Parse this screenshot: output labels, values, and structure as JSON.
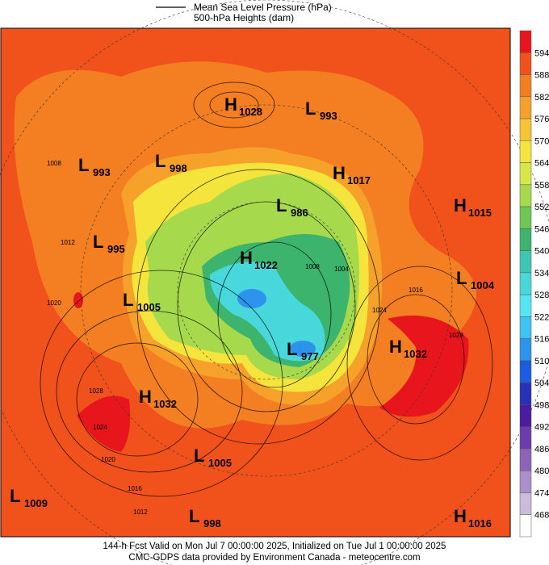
{
  "header": {
    "legend": [
      "Mean Sea Level Pressure (hPa)",
      "500-hPa Heights (dam)"
    ]
  },
  "colorbar": {
    "labels": [
      594,
      588,
      582,
      576,
      570,
      564,
      558,
      552,
      546,
      540,
      534,
      528,
      522,
      516,
      510,
      504,
      498,
      492,
      486,
      480,
      474,
      468
    ],
    "colors": [
      "#e8161c",
      "#f1521c",
      "#f47e22",
      "#f6a12a",
      "#f7c434",
      "#f5e43c",
      "#d6e845",
      "#a6da4c",
      "#6ec654",
      "#3cb46e",
      "#3ec6b4",
      "#48d8dc",
      "#54e6f4",
      "#3cc4f4",
      "#2c94ec",
      "#1c5ce0",
      "#2830b8",
      "#4a1ca0",
      "#6c3cac",
      "#8c64bc",
      "#ac90cc",
      "#ccbcdc",
      "#ffffff"
    ]
  },
  "centers": [
    {
      "letter": "H",
      "value": 1028
    },
    {
      "letter": "L",
      "value": 993
    },
    {
      "letter": "L",
      "value": 993
    },
    {
      "letter": "L",
      "value": 998
    },
    {
      "letter": "H",
      "value": 1017
    },
    {
      "letter": "L",
      "value": 986
    },
    {
      "letter": "H",
      "value": 1015
    },
    {
      "letter": "L",
      "value": 995
    },
    {
      "letter": "H",
      "value": 1022
    },
    {
      "letter": "L",
      "value": 1004
    },
    {
      "letter": "L",
      "value": 1005
    },
    {
      "letter": "L",
      "value": 977
    },
    {
      "letter": "H",
      "value": 1032
    },
    {
      "letter": "H",
      "value": 1032
    },
    {
      "letter": "L",
      "value": 1005
    },
    {
      "letter": "L",
      "value": 1009
    },
    {
      "letter": "L",
      "value": 998
    },
    {
      "letter": "H",
      "value": 1016
    }
  ],
  "contour_labels": [
    1008,
    1012,
    1020,
    1028,
    1024,
    1020,
    1016,
    1012,
    1008,
    1004,
    1016,
    1024,
    1028
  ],
  "footer": [
    "144-h Fcst Valid on Mon Jul  7 00:00:00 2025, Initialized on Tue Jul  1 00:00:00 2025",
    "CMC-GDPS data provided by Environment Canada - meteocentre.com"
  ]
}
